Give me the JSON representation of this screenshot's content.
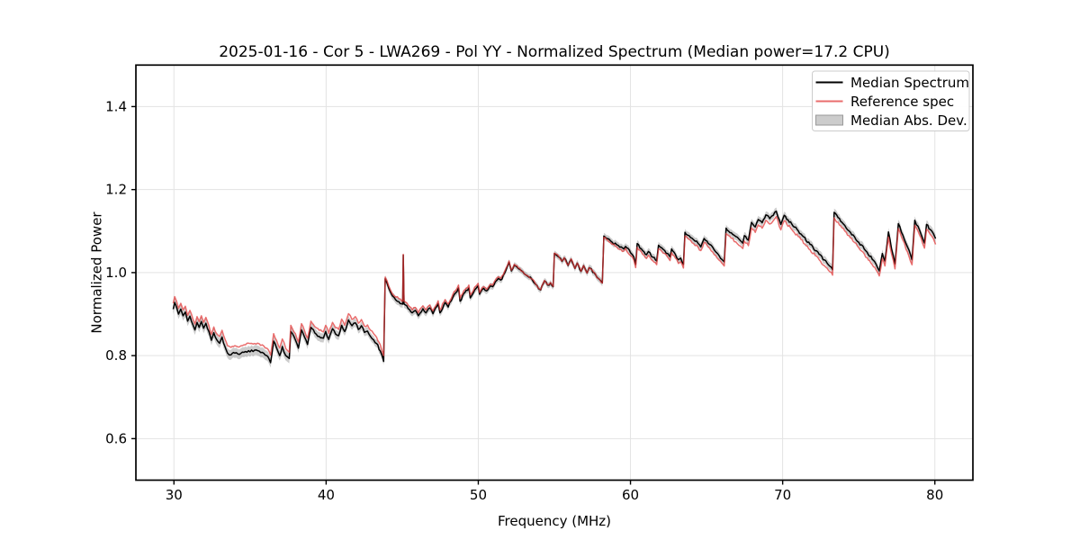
{
  "chart_data": {
    "type": "line",
    "title": "2025-01-16 - Cor 5 - LWA269 - Pol YY - Normalized Spectrum (Median power=17.2 CPU)",
    "xlabel": "Frequency (MHz)",
    "ylabel": "Normalized Power",
    "xlim": [
      27.5,
      82.5
    ],
    "ylim": [
      0.5,
      1.5
    ],
    "xticks": [
      30,
      40,
      50,
      60,
      70,
      80
    ],
    "yticks": [
      0.6,
      0.8,
      1.0,
      1.2,
      1.4
    ],
    "grid": true,
    "legend_position": "upper right",
    "colors": {
      "grid": "#e3e3e3",
      "spine": "#000000",
      "text": "#000000",
      "background": "#ffffff"
    },
    "noise_halfamp": 0.003,
    "x": [
      29.95,
      30.05,
      30.18,
      30.3,
      30.45,
      30.6,
      30.75,
      30.9,
      31.05,
      31.25,
      31.38,
      31.52,
      31.66,
      31.8,
      31.95,
      32.1,
      32.3,
      32.46,
      32.62,
      32.8,
      33.0,
      33.16,
      33.35,
      33.52,
      33.75,
      34.0,
      34.3,
      34.6,
      34.9,
      35.2,
      35.5,
      35.8,
      36.1,
      36.35,
      36.55,
      36.75,
      36.95,
      37.12,
      37.35,
      37.58,
      37.68,
      37.98,
      38.18,
      38.38,
      38.58,
      38.78,
      39.0,
      39.25,
      39.55,
      39.82,
      39.97,
      40.17,
      40.42,
      40.62,
      40.82,
      41.02,
      41.22,
      41.47,
      41.7,
      41.92,
      42.12,
      42.32,
      42.52,
      42.72,
      42.92,
      43.12,
      43.32,
      43.56,
      43.78,
      43.88,
      44.12,
      44.35,
      44.58,
      44.78,
      44.96,
      45.03,
      45.07,
      45.12,
      45.3,
      45.48,
      45.66,
      45.86,
      46.06,
      46.36,
      46.56,
      46.82,
      47.02,
      47.36,
      47.48,
      47.82,
      48.02,
      48.32,
      48.7,
      48.8,
      49.12,
      49.38,
      49.47,
      49.76,
      49.99,
      50.08,
      50.36,
      50.55,
      50.8,
      50.95,
      51.12,
      51.32,
      51.48,
      51.72,
      52.02,
      52.17,
      52.37,
      52.62,
      52.92,
      53.22,
      53.52,
      53.76,
      53.96,
      54.1,
      54.35,
      54.55,
      54.75,
      54.92,
      55.0,
      55.3,
      55.5,
      55.65,
      55.9,
      56.1,
      56.35,
      56.5,
      56.75,
      56.92,
      57.15,
      57.28,
      57.6,
      57.88,
      58.15,
      58.25,
      58.5,
      58.8,
      59.1,
      59.3,
      59.55,
      59.68,
      60.0,
      60.22,
      60.34,
      60.44,
      60.8,
      61.05,
      61.18,
      61.48,
      61.72,
      61.84,
      62.15,
      62.45,
      62.6,
      62.7,
      62.95,
      63.15,
      63.3,
      63.48,
      63.58,
      63.85,
      64.15,
      64.45,
      64.62,
      64.84,
      65.2,
      65.6,
      66.0,
      66.16,
      66.28,
      66.62,
      66.92,
      67.22,
      67.38,
      67.48,
      67.75,
      67.95,
      68.2,
      68.4,
      68.65,
      68.9,
      69.15,
      69.38,
      69.58,
      69.88,
      70.1,
      70.6,
      71.2,
      71.8,
      72.4,
      73.0,
      73.28,
      73.38,
      73.9,
      74.45,
      75.0,
      75.55,
      76.05,
      76.35,
      76.55,
      76.72,
      76.95,
      77.15,
      77.38,
      77.6,
      77.9,
      78.2,
      78.5,
      78.68,
      79.0,
      79.2,
      79.32,
      79.45,
      79.7,
      79.9,
      80.05
    ],
    "series": [
      {
        "name": "Median Spectrum",
        "color": "#000000",
        "opacity": 1,
        "width": 1.5,
        "values": [
          0.912,
          0.928,
          0.916,
          0.9,
          0.912,
          0.896,
          0.905,
          0.883,
          0.895,
          0.874,
          0.862,
          0.88,
          0.868,
          0.882,
          0.866,
          0.878,
          0.858,
          0.837,
          0.855,
          0.839,
          0.83,
          0.845,
          0.822,
          0.806,
          0.802,
          0.806,
          0.803,
          0.808,
          0.812,
          0.81,
          0.812,
          0.808,
          0.8,
          0.783,
          0.835,
          0.818,
          0.8,
          0.822,
          0.8,
          0.793,
          0.858,
          0.838,
          0.818,
          0.862,
          0.845,
          0.827,
          0.868,
          0.855,
          0.846,
          0.842,
          0.858,
          0.839,
          0.865,
          0.852,
          0.848,
          0.873,
          0.858,
          0.886,
          0.872,
          0.879,
          0.863,
          0.872,
          0.856,
          0.859,
          0.846,
          0.838,
          0.829,
          0.811,
          0.786,
          0.985,
          0.962,
          0.944,
          0.934,
          0.93,
          0.925,
          0.924,
          1.042,
          0.924,
          0.92,
          0.911,
          0.903,
          0.909,
          0.896,
          0.913,
          0.903,
          0.915,
          0.901,
          0.925,
          0.903,
          0.928,
          0.917,
          0.94,
          0.963,
          0.931,
          0.952,
          0.963,
          0.939,
          0.958,
          0.968,
          0.948,
          0.962,
          0.956,
          0.968,
          0.966,
          0.978,
          0.986,
          0.982,
          0.998,
          1.025,
          1.004,
          1.018,
          1.01,
          1.002,
          0.992,
          0.984,
          0.972,
          0.961,
          0.958,
          0.98,
          0.97,
          0.975,
          0.966,
          1.046,
          1.037,
          1.027,
          1.035,
          1.017,
          1.032,
          1.01,
          1.023,
          1.003,
          1.017,
          0.999,
          1.012,
          1.0,
          0.986,
          0.975,
          1.088,
          1.082,
          1.073,
          1.067,
          1.061,
          1.057,
          1.063,
          1.048,
          1.038,
          1.02,
          1.07,
          1.053,
          1.043,
          1.051,
          1.037,
          1.028,
          1.066,
          1.056,
          1.046,
          1.038,
          1.057,
          1.044,
          1.031,
          1.035,
          1.02,
          1.097,
          1.089,
          1.079,
          1.07,
          1.062,
          1.082,
          1.068,
          1.05,
          1.032,
          1.026,
          1.107,
          1.096,
          1.087,
          1.077,
          1.071,
          1.089,
          1.078,
          1.121,
          1.11,
          1.128,
          1.12,
          1.139,
          1.13,
          1.138,
          1.148,
          1.116,
          1.138,
          1.117,
          1.093,
          1.068,
          1.044,
          1.019,
          1.007,
          1.145,
          1.121,
          1.097,
          1.073,
          1.049,
          1.026,
          1.004,
          1.046,
          1.028,
          1.098,
          1.058,
          1.021,
          1.118,
          1.09,
          1.062,
          1.031,
          1.126,
          1.102,
          1.082,
          1.071,
          1.116,
          1.104,
          1.094,
          1.082
        ]
      },
      {
        "name": "Reference spec",
        "color": "#e03434",
        "opacity": 0.72,
        "width": 1.5,
        "values": [
          0.926,
          0.942,
          0.93,
          0.914,
          0.926,
          0.91,
          0.919,
          0.897,
          0.909,
          0.888,
          0.876,
          0.894,
          0.882,
          0.896,
          0.88,
          0.892,
          0.872,
          0.851,
          0.869,
          0.853,
          0.846,
          0.861,
          0.84,
          0.824,
          0.82,
          0.824,
          0.821,
          0.826,
          0.83,
          0.828,
          0.83,
          0.826,
          0.818,
          0.801,
          0.853,
          0.836,
          0.818,
          0.84,
          0.817,
          0.808,
          0.873,
          0.853,
          0.833,
          0.877,
          0.86,
          0.842,
          0.883,
          0.87,
          0.861,
          0.857,
          0.873,
          0.854,
          0.88,
          0.867,
          0.863,
          0.888,
          0.873,
          0.901,
          0.887,
          0.894,
          0.878,
          0.887,
          0.871,
          0.874,
          0.861,
          0.853,
          0.844,
          0.826,
          0.8,
          0.989,
          0.967,
          0.949,
          0.941,
          0.937,
          0.932,
          0.931,
          1.044,
          0.931,
          0.927,
          0.918,
          0.91,
          0.916,
          0.903,
          0.92,
          0.91,
          0.922,
          0.908,
          0.932,
          0.91,
          0.935,
          0.924,
          0.947,
          0.97,
          0.938,
          0.959,
          0.97,
          0.946,
          0.965,
          0.974,
          0.952,
          0.966,
          0.96,
          0.972,
          0.97,
          0.982,
          0.99,
          0.986,
          1.002,
          1.028,
          1.006,
          1.02,
          1.011,
          1.003,
          0.993,
          0.985,
          0.973,
          0.962,
          0.959,
          0.981,
          0.971,
          0.976,
          0.967,
          1.047,
          1.038,
          1.028,
          1.036,
          1.018,
          1.033,
          1.01,
          1.023,
          1.003,
          1.017,
          0.999,
          1.012,
          1.0,
          0.986,
          0.975,
          1.085,
          1.078,
          1.068,
          1.062,
          1.056,
          1.052,
          1.058,
          1.041,
          1.03,
          1.012,
          1.061,
          1.044,
          1.034,
          1.042,
          1.028,
          1.019,
          1.057,
          1.047,
          1.037,
          1.029,
          1.048,
          1.035,
          1.022,
          1.026,
          1.011,
          1.088,
          1.08,
          1.07,
          1.061,
          1.053,
          1.073,
          1.059,
          1.041,
          1.023,
          1.016,
          1.094,
          1.083,
          1.074,
          1.064,
          1.058,
          1.076,
          1.065,
          1.108,
          1.097,
          1.115,
          1.107,
          1.126,
          1.117,
          1.125,
          1.135,
          1.103,
          1.125,
          1.104,
          1.08,
          1.055,
          1.031,
          1.006,
          0.994,
          1.132,
          1.108,
          1.084,
          1.06,
          1.036,
          1.013,
          0.992,
          1.034,
          1.016,
          1.086,
          1.046,
          1.009,
          1.106,
          1.078,
          1.05,
          1.019,
          1.114,
          1.09,
          1.07,
          1.059,
          1.104,
          1.092,
          1.082,
          1.068
        ]
      }
    ],
    "band": {
      "name": "Median Abs. Dev.",
      "around": "Median Spectrum",
      "fill": "#000000",
      "fill_opacity": 0.2,
      "legend_fill": "#cccccc",
      "legend_edge": "#999999",
      "halfwidth_points": [
        [
          29.95,
          0.012
        ],
        [
          37.0,
          0.012
        ],
        [
          44.0,
          0.009
        ],
        [
          50.0,
          0.008
        ],
        [
          54.0,
          0.007
        ],
        [
          58.2,
          0.008
        ],
        [
          70.0,
          0.009
        ],
        [
          80.05,
          0.01
        ]
      ]
    }
  }
}
